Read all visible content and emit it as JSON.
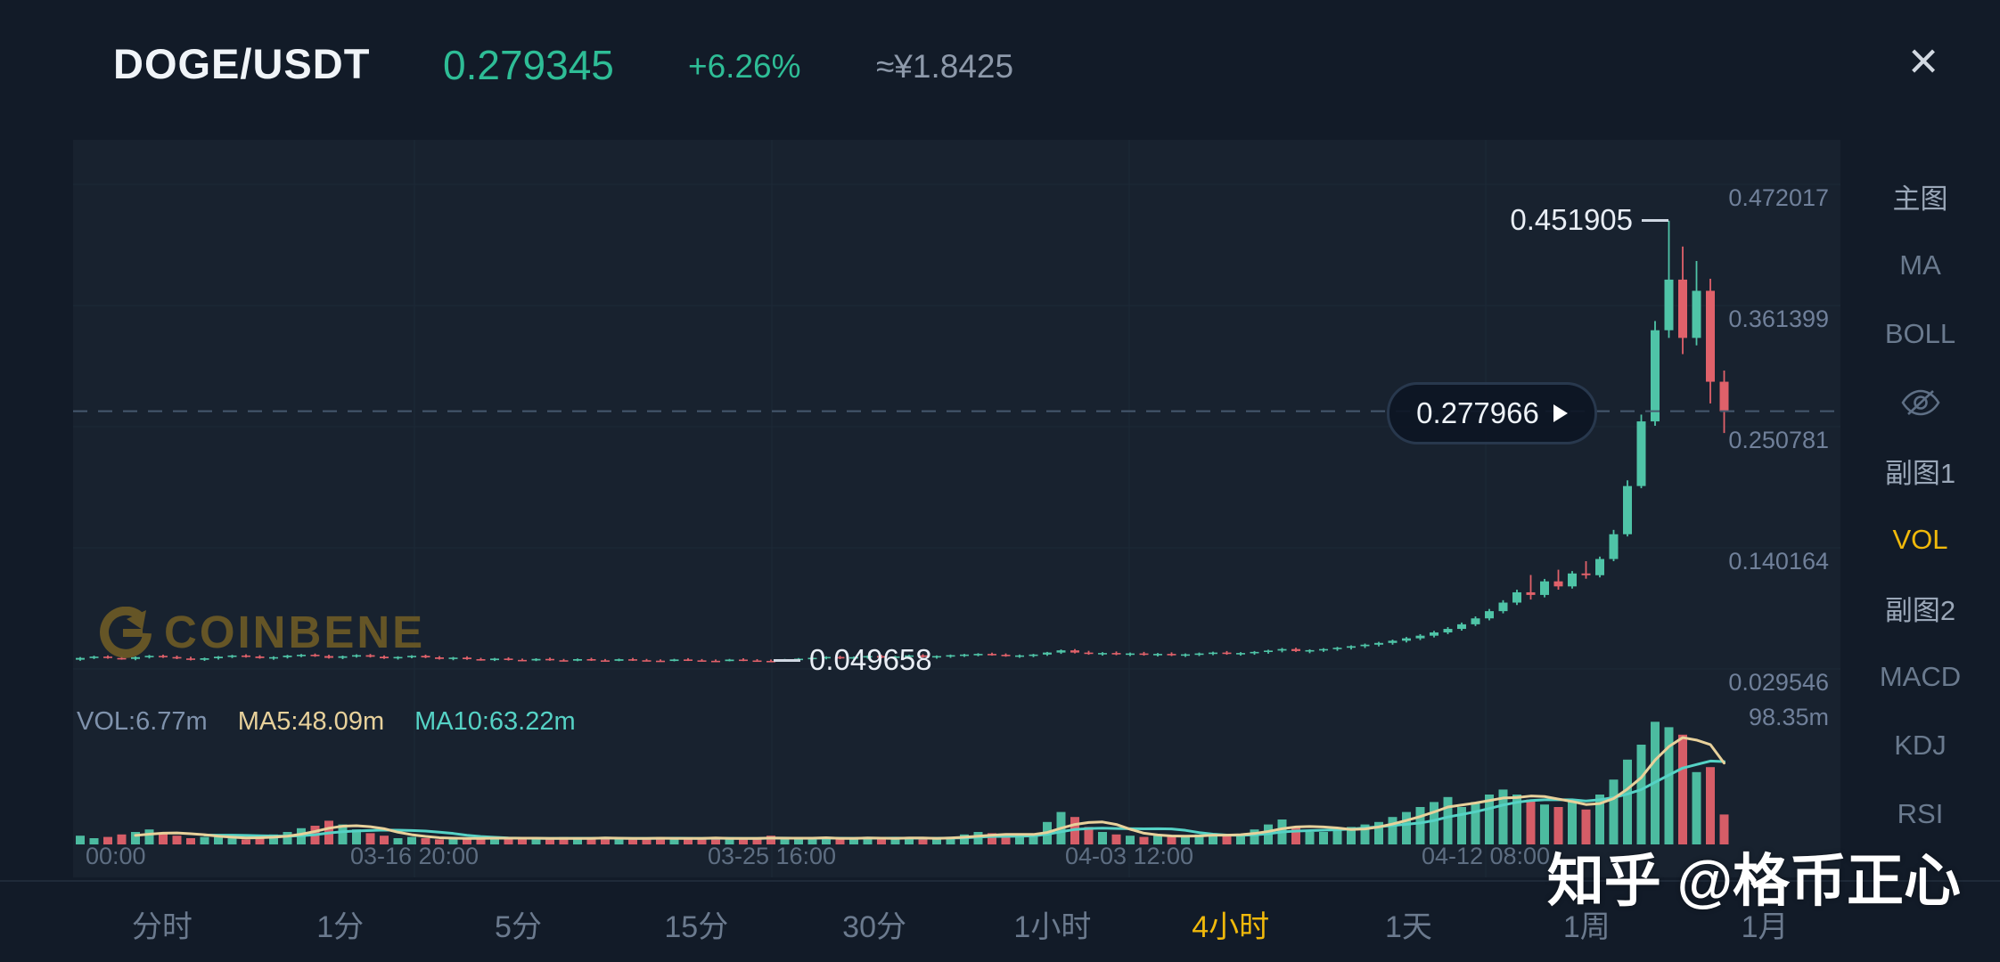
{
  "header": {
    "symbol": "DOGE/USDT",
    "price": "0.279345",
    "change": "+6.26%",
    "cny_value": "≈¥1.8425",
    "close_label": "×"
  },
  "colors": {
    "up": "#4fc4a7",
    "down": "#e0616a",
    "accent_yellow": "#f0b90b",
    "price_green": "#2ebd96",
    "ma5_line": "#e8d19b",
    "ma10_line": "#55d2c5",
    "grid": "#1d2937",
    "dashed_line": "#46586e",
    "watermark_gold": "#6c5a26"
  },
  "sidebar": {
    "items": [
      {
        "label": "主图",
        "kind": "title"
      },
      {
        "label": "MA",
        "kind": "option"
      },
      {
        "label": "BOLL",
        "kind": "option"
      },
      {
        "label": "",
        "kind": "icon",
        "icon": "eye-off"
      },
      {
        "label": "副图1",
        "kind": "title"
      },
      {
        "label": "VOL",
        "kind": "option",
        "accent": true
      },
      {
        "label": "副图2",
        "kind": "title"
      },
      {
        "label": "MACD",
        "kind": "option"
      },
      {
        "label": "KDJ",
        "kind": "option"
      },
      {
        "label": "RSI",
        "kind": "option"
      }
    ]
  },
  "tabs": {
    "items": [
      "分时",
      "1分",
      "5分",
      "15分",
      "30分",
      "1小时",
      "4小时",
      "1天",
      "1周",
      "1月"
    ],
    "active_index": 6
  },
  "volume_legend": {
    "vol": "VOL:6.77m",
    "ma5": "MA5:48.09m",
    "ma10": "MA10:63.22m"
  },
  "watermarks": {
    "coinbene": "COINBENE",
    "zhihu": "知乎 @格币正心"
  },
  "chart_data": {
    "type": "candlestick",
    "title": "DOGE/USDT 4小时 K线",
    "y_axis_labels": [
      "0.472017",
      "0.361399",
      "0.250781",
      "0.140164",
      "0.029546"
    ],
    "volume_axis_label": "98.35m",
    "x_axis_labels": [
      "00:00",
      "03-16 20:00",
      "03-25 16:00",
      "04-03 12:00",
      "04-12 08:00"
    ],
    "current_price": "0.277966",
    "high_label": "0.451905",
    "low_label": "0.049658",
    "price_top": 0.472017,
    "price_bottom": 0.029546,
    "volume_max": 98.35,
    "grid": true,
    "candles": [
      [
        0.0512,
        0.0536,
        0.0502,
        0.0528,
        7
      ],
      [
        0.0528,
        0.0548,
        0.0518,
        0.054,
        5
      ],
      [
        0.054,
        0.0551,
        0.0521,
        0.0527,
        6
      ],
      [
        0.0527,
        0.0545,
        0.0512,
        0.0519,
        8
      ],
      [
        0.0519,
        0.0541,
        0.0507,
        0.0535,
        10
      ],
      [
        0.0535,
        0.0555,
        0.0523,
        0.0547,
        12
      ],
      [
        0.0547,
        0.0558,
        0.0528,
        0.0536,
        9
      ],
      [
        0.0536,
        0.0549,
        0.0517,
        0.0523,
        7
      ],
      [
        0.0523,
        0.0539,
        0.0505,
        0.0511,
        5
      ],
      [
        0.0511,
        0.0531,
        0.0501,
        0.0525,
        6
      ],
      [
        0.0525,
        0.0545,
        0.0513,
        0.0539,
        6
      ],
      [
        0.0539,
        0.0556,
        0.0527,
        0.055,
        5
      ],
      [
        0.055,
        0.0561,
        0.0531,
        0.0541,
        4
      ],
      [
        0.0541,
        0.0553,
        0.0521,
        0.0527,
        6
      ],
      [
        0.0527,
        0.0543,
        0.0511,
        0.0535,
        8
      ],
      [
        0.0535,
        0.0556,
        0.0523,
        0.0549,
        10
      ],
      [
        0.0549,
        0.0564,
        0.0535,
        0.0557,
        13
      ],
      [
        0.0557,
        0.0568,
        0.0538,
        0.0545,
        15
      ],
      [
        0.0545,
        0.0557,
        0.0522,
        0.0529,
        19
      ],
      [
        0.0529,
        0.0549,
        0.0517,
        0.0543,
        16
      ],
      [
        0.0543,
        0.0561,
        0.0531,
        0.0553,
        12
      ],
      [
        0.0553,
        0.0564,
        0.0532,
        0.0539,
        9
      ],
      [
        0.0539,
        0.0551,
        0.0519,
        0.0525,
        7
      ],
      [
        0.0525,
        0.0543,
        0.0513,
        0.0537,
        5
      ],
      [
        0.0537,
        0.0553,
        0.0525,
        0.0547,
        6
      ],
      [
        0.0547,
        0.0558,
        0.0526,
        0.0533,
        5
      ],
      [
        0.0533,
        0.0545,
        0.0513,
        0.0519,
        4
      ],
      [
        0.0519,
        0.0537,
        0.0507,
        0.0531,
        5
      ],
      [
        0.0531,
        0.0543,
        0.0511,
        0.0517,
        4
      ],
      [
        0.0517,
        0.0529,
        0.0503,
        0.0508,
        6
      ],
      [
        0.0508,
        0.0528,
        0.05,
        0.0522,
        6
      ],
      [
        0.0522,
        0.0534,
        0.0504,
        0.051,
        4
      ],
      [
        0.051,
        0.0522,
        0.05,
        0.0505,
        5
      ],
      [
        0.0505,
        0.0525,
        0.0499,
        0.0519,
        4
      ],
      [
        0.0519,
        0.0531,
        0.0502,
        0.0507,
        5
      ],
      [
        0.0507,
        0.0519,
        0.05,
        0.0503,
        6
      ],
      [
        0.0503,
        0.0523,
        0.0498,
        0.0517,
        4
      ],
      [
        0.0517,
        0.0529,
        0.0501,
        0.0506,
        5
      ],
      [
        0.0506,
        0.0518,
        0.0499,
        0.0502,
        6
      ],
      [
        0.0502,
        0.0522,
        0.0498,
        0.0516,
        4
      ],
      [
        0.0516,
        0.0528,
        0.0501,
        0.0507,
        5
      ],
      [
        0.0507,
        0.0519,
        0.05,
        0.0503,
        4
      ],
      [
        0.0503,
        0.0515,
        0.0498,
        0.05,
        6
      ],
      [
        0.05,
        0.052,
        0.0497,
        0.0514,
        5
      ],
      [
        0.0514,
        0.0526,
        0.05,
        0.0506,
        4
      ],
      [
        0.0506,
        0.0518,
        0.0499,
        0.0502,
        5
      ],
      [
        0.0502,
        0.0514,
        0.0498,
        0.0499,
        6
      ],
      [
        0.0499,
        0.0519,
        0.0497,
        0.0513,
        4
      ],
      [
        0.0513,
        0.0525,
        0.0499,
        0.0505,
        5
      ],
      [
        0.0505,
        0.0517,
        0.0498,
        0.0501,
        4
      ],
      [
        0.0501,
        0.0513,
        0.049658,
        0.0499,
        7
      ],
      [
        0.0499,
        0.0519,
        0.0498,
        0.0513,
        5
      ],
      [
        0.0513,
        0.0527,
        0.0503,
        0.0521,
        4
      ],
      [
        0.0521,
        0.0535,
        0.0509,
        0.0529,
        5
      ],
      [
        0.0529,
        0.0543,
        0.0515,
        0.0537,
        6
      ],
      [
        0.0537,
        0.0548,
        0.0517,
        0.0523,
        4
      ],
      [
        0.0523,
        0.0541,
        0.0511,
        0.0535,
        5
      ],
      [
        0.0535,
        0.0551,
        0.0521,
        0.0545,
        6
      ],
      [
        0.0545,
        0.0556,
        0.0525,
        0.0531,
        4
      ],
      [
        0.0531,
        0.0547,
        0.0517,
        0.0541,
        5
      ],
      [
        0.0541,
        0.0557,
        0.0527,
        0.0551,
        6
      ],
      [
        0.0551,
        0.0562,
        0.0531,
        0.0537,
        5
      ],
      [
        0.0537,
        0.0551,
        0.0521,
        0.0545,
        4
      ],
      [
        0.0545,
        0.0559,
        0.0529,
        0.0553,
        6
      ],
      [
        0.0553,
        0.0565,
        0.0537,
        0.0559,
        8
      ],
      [
        0.0559,
        0.0571,
        0.0543,
        0.0565,
        10
      ],
      [
        0.0565,
        0.0576,
        0.0549,
        0.0557,
        9
      ],
      [
        0.0557,
        0.0569,
        0.0539,
        0.0545,
        7
      ],
      [
        0.0545,
        0.0559,
        0.0529,
        0.0551,
        6
      ],
      [
        0.0551,
        0.0565,
        0.0535,
        0.0559,
        8
      ],
      [
        0.0559,
        0.0583,
        0.0547,
        0.0577,
        18
      ],
      [
        0.0577,
        0.0605,
        0.0565,
        0.0597,
        26
      ],
      [
        0.0597,
        0.0609,
        0.0569,
        0.0577,
        22
      ],
      [
        0.0577,
        0.0593,
        0.0557,
        0.0565,
        14
      ],
      [
        0.0565,
        0.0581,
        0.0549,
        0.0573,
        10
      ],
      [
        0.0573,
        0.0587,
        0.0553,
        0.0561,
        8
      ],
      [
        0.0561,
        0.0577,
        0.0545,
        0.0569,
        7
      ],
      [
        0.0569,
        0.0583,
        0.0549,
        0.0557,
        6
      ],
      [
        0.0557,
        0.0573,
        0.0541,
        0.0565,
        7
      ],
      [
        0.0565,
        0.0579,
        0.0545,
        0.0553,
        6
      ],
      [
        0.0553,
        0.0569,
        0.0537,
        0.0561,
        7
      ],
      [
        0.0561,
        0.0577,
        0.0545,
        0.0569,
        8
      ],
      [
        0.0569,
        0.0585,
        0.0553,
        0.0577,
        9
      ],
      [
        0.0577,
        0.0591,
        0.0557,
        0.0565,
        7
      ],
      [
        0.0565,
        0.0581,
        0.0549,
        0.0573,
        8
      ],
      [
        0.0573,
        0.0591,
        0.0557,
        0.0583,
        12
      ],
      [
        0.0583,
        0.0603,
        0.0567,
        0.0595,
        16
      ],
      [
        0.0595,
        0.0619,
        0.0579,
        0.0609,
        20
      ],
      [
        0.0609,
        0.0621,
        0.0583,
        0.0591,
        14
      ],
      [
        0.0591,
        0.0607,
        0.0571,
        0.0599,
        10
      ],
      [
        0.0599,
        0.0617,
        0.0583,
        0.0609,
        10
      ],
      [
        0.0609,
        0.0629,
        0.0593,
        0.0621,
        12
      ],
      [
        0.0621,
        0.0643,
        0.0605,
        0.0635,
        14
      ],
      [
        0.0635,
        0.0659,
        0.0619,
        0.0649,
        16
      ],
      [
        0.0649,
        0.0675,
        0.0633,
        0.0665,
        18
      ],
      [
        0.0665,
        0.0695,
        0.0649,
        0.0685,
        22
      ],
      [
        0.0685,
        0.0719,
        0.0669,
        0.0707,
        26
      ],
      [
        0.0707,
        0.0745,
        0.0691,
        0.0731,
        30
      ],
      [
        0.0731,
        0.0775,
        0.0715,
        0.0761,
        34
      ],
      [
        0.0761,
        0.0809,
        0.0745,
        0.0793,
        38
      ],
      [
        0.0793,
        0.0851,
        0.0777,
        0.0835,
        30
      ],
      [
        0.0835,
        0.0907,
        0.0819,
        0.0889,
        34
      ],
      [
        0.0889,
        0.0975,
        0.0871,
        0.0955,
        40
      ],
      [
        0.0955,
        0.1055,
        0.0935,
        0.1033,
        44
      ],
      [
        0.1033,
        0.1151,
        0.1011,
        0.1127,
        40
      ],
      [
        0.1127,
        0.1285,
        0.1061,
        0.1103,
        36
      ],
      [
        0.1103,
        0.1249,
        0.1081,
        0.1227,
        32
      ],
      [
        0.1227,
        0.1333,
        0.1151,
        0.1181,
        30
      ],
      [
        0.1181,
        0.1321,
        0.1161,
        0.1299,
        34
      ],
      [
        0.1299,
        0.1411,
        0.1251,
        0.1283,
        28
      ],
      [
        0.1283,
        0.1453,
        0.1263,
        0.1431,
        40
      ],
      [
        0.1431,
        0.1697,
        0.1411,
        0.1657,
        52
      ],
      [
        0.1657,
        0.2149,
        0.1637,
        0.2097,
        68
      ],
      [
        0.2097,
        0.2749,
        0.2077,
        0.2687,
        80
      ],
      [
        0.2687,
        0.3603,
        0.2647,
        0.3519,
        98.35
      ],
      [
        0.3519,
        0.451905,
        0.3449,
        0.3981,
        94
      ],
      [
        0.3981,
        0.4283,
        0.3301,
        0.3449,
        88
      ],
      [
        0.3449,
        0.4151,
        0.3381,
        0.3879,
        58
      ],
      [
        0.3879,
        0.3989,
        0.2851,
        0.3049,
        62
      ],
      [
        0.3049,
        0.3151,
        0.2581,
        0.277966,
        24
      ]
    ]
  }
}
